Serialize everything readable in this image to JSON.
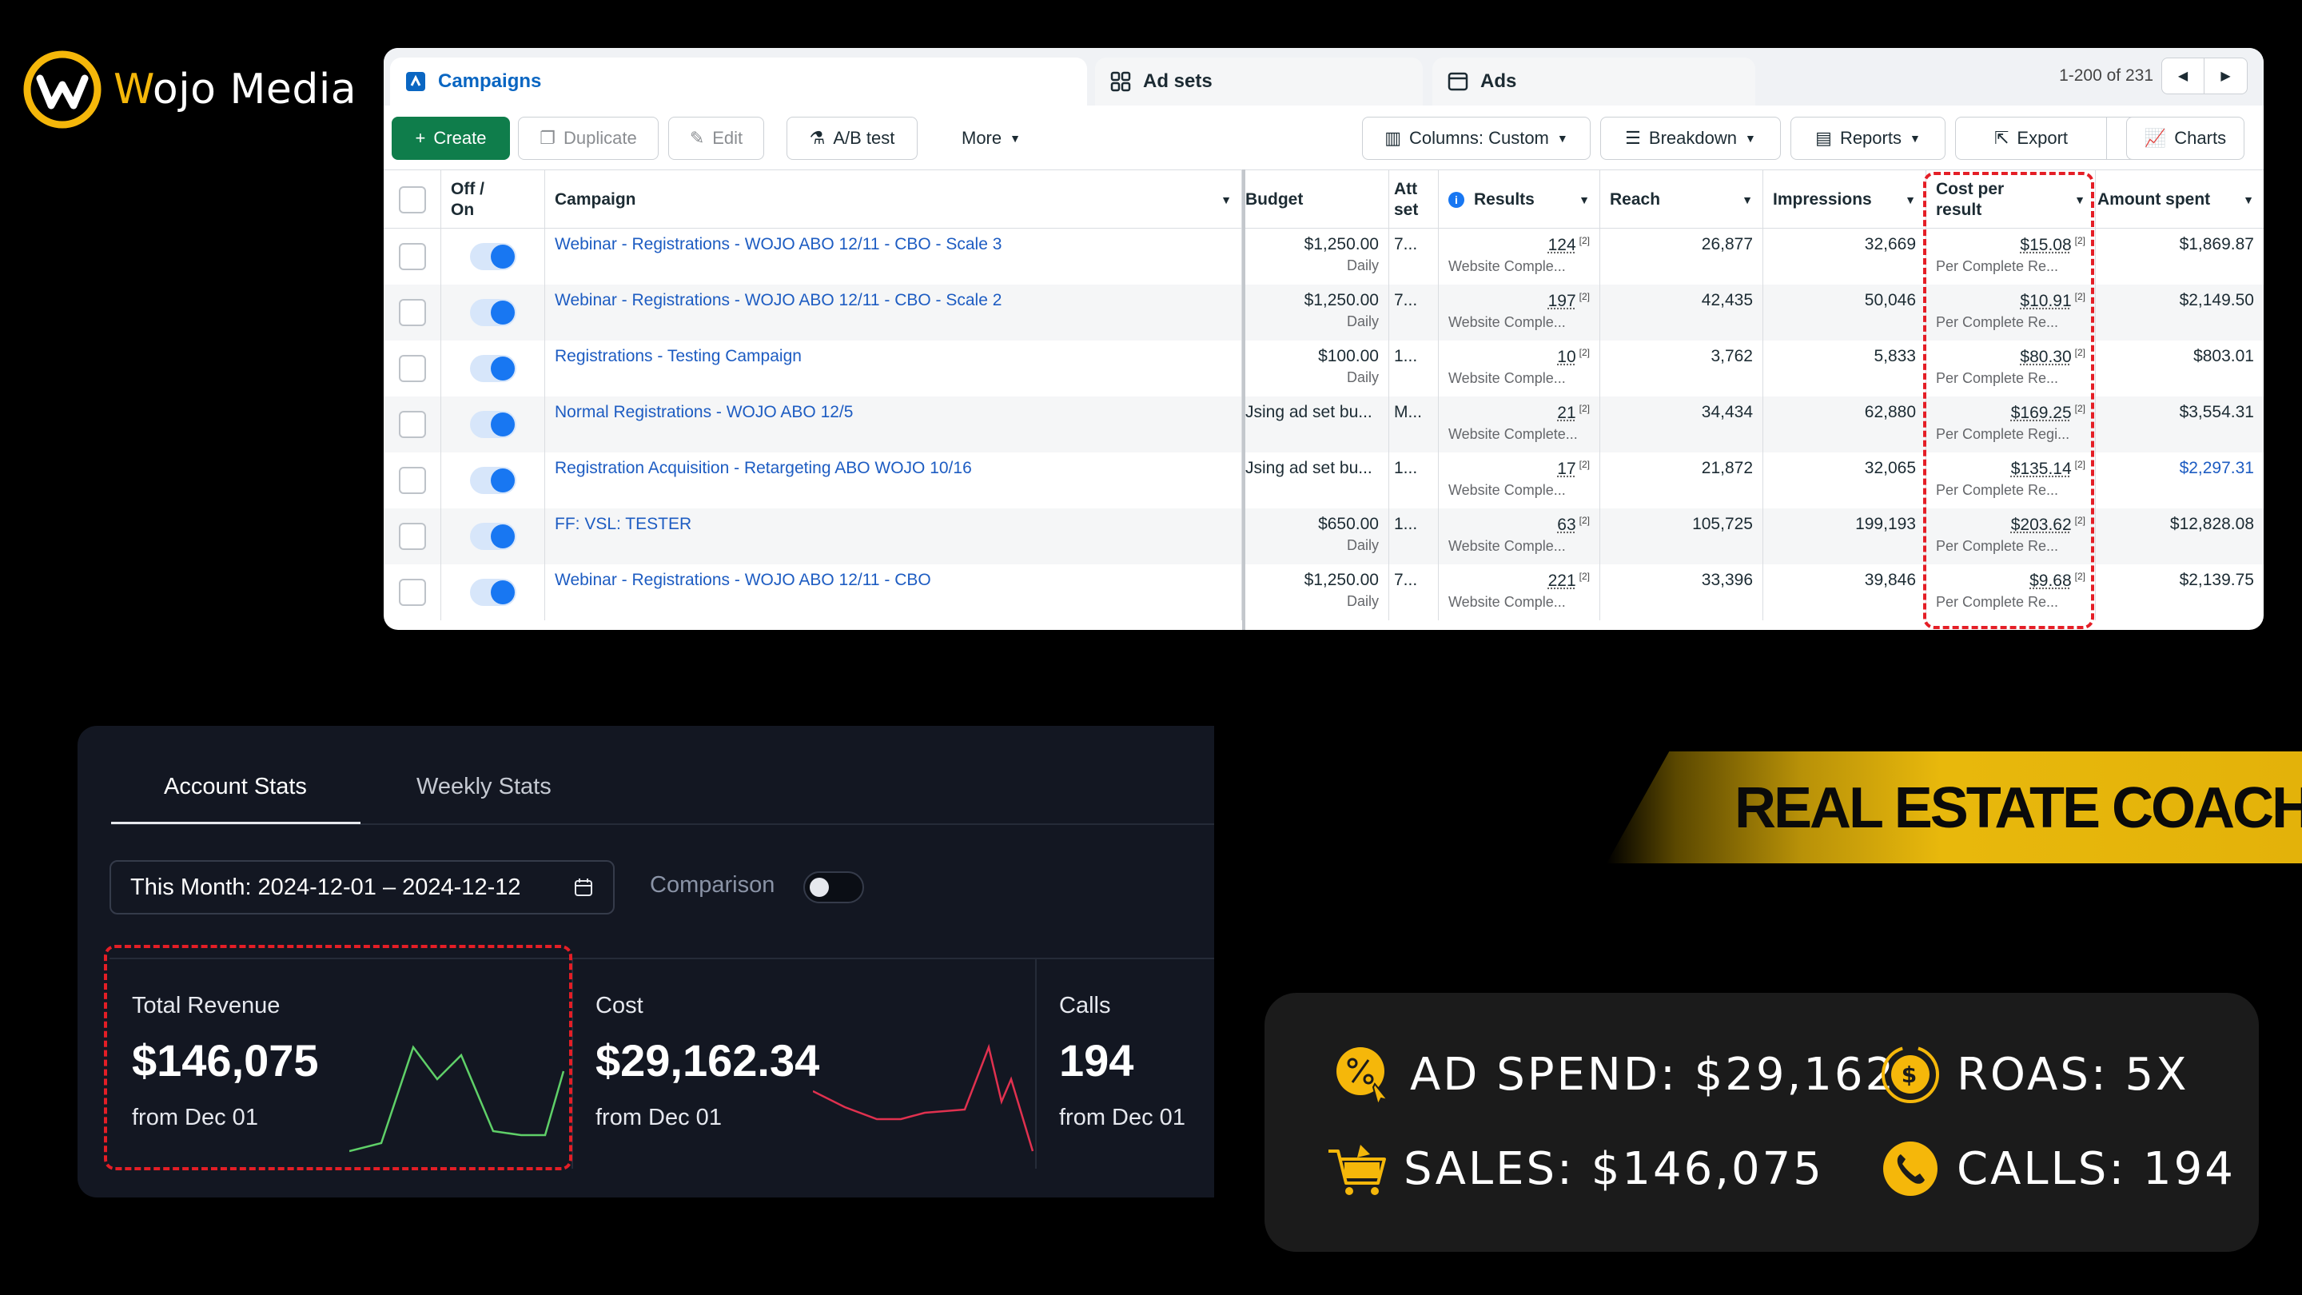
{
  "brand": {
    "name_part1": "W",
    "name_part2": "ojo Media",
    "logo_icon": "wojo-logo-icon"
  },
  "ads_manager": {
    "tabs": [
      {
        "label": "Campaigns",
        "icon": "campaigns-icon"
      },
      {
        "label": "Ad sets",
        "icon": "grid-icon"
      },
      {
        "label": "Ads",
        "icon": "ad-frame-icon"
      }
    ],
    "pager_text": "1-200 of 231",
    "toolbar": {
      "create": "Create",
      "duplicate": "Duplicate",
      "edit": "Edit",
      "ab_test": "A/B test",
      "more": "More",
      "columns": "Columns: Custom",
      "breakdown": "Breakdown",
      "reports": "Reports",
      "export": "Export",
      "charts": "Charts"
    },
    "headers": {
      "off_on": "Off /\nOn",
      "campaign": "Campaign",
      "budget": "Budget",
      "attribution": "Att\nset",
      "results": "Results",
      "reach": "Reach",
      "impressions": "Impressions",
      "cost_per_result": "Cost per\nresult",
      "amount_spent": "Amount spent"
    },
    "rows": [
      {
        "campaign": "Webinar - Registrations - WOJO ABO 12/11 - CBO - Scale 3",
        "budget": "$1,250.00",
        "budget_sub": "Daily",
        "attr": "7...",
        "results": "124",
        "results_sub": "Website Comple...",
        "reach": "26,877",
        "impressions": "32,669",
        "cpr": "$15.08",
        "cpr_sub": "Per Complete Re...",
        "spent": "$1,869.87"
      },
      {
        "campaign": "Webinar - Registrations - WOJO ABO 12/11 - CBO - Scale 2",
        "budget": "$1,250.00",
        "budget_sub": "Daily",
        "attr": "7...",
        "results": "197",
        "results_sub": "Website Comple...",
        "reach": "42,435",
        "impressions": "50,046",
        "cpr": "$10.91",
        "cpr_sub": "Per Complete Re...",
        "spent": "$2,149.50"
      },
      {
        "campaign": "Registrations - Testing Campaign",
        "budget": "$100.00",
        "budget_sub": "Daily",
        "attr": "1...",
        "results": "10",
        "results_sub": "Website Comple...",
        "reach": "3,762",
        "impressions": "5,833",
        "cpr": "$80.30",
        "cpr_sub": "Per Complete Re...",
        "spent": "$803.01"
      },
      {
        "campaign": "Normal Registrations - WOJO ABO 12/5",
        "budget": "Jsing ad set bu...",
        "budget_sub": "",
        "attr": "M...",
        "results": "21",
        "results_sub": "Website Complete...",
        "reach": "34,434",
        "impressions": "62,880",
        "cpr": "$169.25",
        "cpr_sub": "Per Complete Regi...",
        "spent": "$3,554.31"
      },
      {
        "campaign": "Registration Acquisition - Retargeting ABO WOJO 10/16",
        "budget": "Jsing ad set bu...",
        "budget_sub": "",
        "attr": "1...",
        "results": "17",
        "results_sub": "Website Comple...",
        "reach": "21,872",
        "impressions": "32,065",
        "cpr": "$135.14",
        "cpr_sub": "Per Complete Re...",
        "spent": "$2,297.31"
      },
      {
        "campaign": "FF: VSL: TESTER",
        "budget": "$650.00",
        "budget_sub": "Daily",
        "attr": "1...",
        "results": "63",
        "results_sub": "Website Comple...",
        "reach": "105,725",
        "impressions": "199,193",
        "cpr": "$203.62",
        "cpr_sub": "Per Complete Re...",
        "spent": "$12,828.08"
      },
      {
        "campaign": "Webinar - Registrations - WOJO ABO 12/11 - CBO",
        "budget": "$1,250.00",
        "budget_sub": "Daily",
        "attr": "7...",
        "results": "221",
        "results_sub": "Website Comple...",
        "reach": "33,396",
        "impressions": "39,846",
        "cpr": "$9.68",
        "cpr_sub": "Per Complete Re...",
        "spent": "$2,139.75"
      }
    ],
    "footnote_mark": "[2]"
  },
  "stats_panel": {
    "tabs": [
      "Account Stats",
      "Weekly Stats"
    ],
    "date_range": "This Month: 2024-12-01 – 2024-12-12",
    "comparison_label": "Comparison",
    "comparison_enabled": false,
    "metrics": [
      {
        "label": "Total Revenue",
        "value": "$146,075",
        "from": "from Dec 01",
        "color": "#5fd068"
      },
      {
        "label": "Cost",
        "value": "$29,162.34",
        "from": "from Dec 01",
        "color": "#e0314f"
      },
      {
        "label": "Calls",
        "value": "194",
        "from": "from Dec 01",
        "color": "#e0314f"
      }
    ]
  },
  "banner": {
    "text": "REAL ESTATE COACH",
    "color": "#e8b80c"
  },
  "results_card": {
    "items": [
      {
        "text": "AD SPEND: $29,162",
        "icon": "percent-tag-icon"
      },
      {
        "text": "ROAS: 5X",
        "icon": "dollar-coin-icon"
      },
      {
        "text": "SALES: $146,075",
        "icon": "shopping-cart-icon"
      },
      {
        "text": "CALLS: 194",
        "icon": "phone-icon"
      }
    ],
    "accent": "#f5b70a"
  }
}
